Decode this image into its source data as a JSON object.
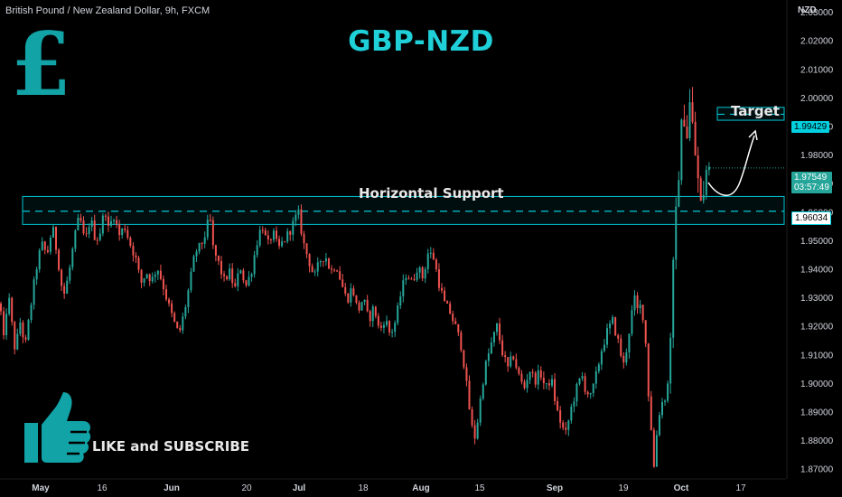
{
  "header": {
    "symbol_description": "British Pound / New Zealand Dollar, 9h, FXCM",
    "currency": "NZD"
  },
  "title": "GBP-NZD",
  "currency_symbol": "£",
  "annotations": {
    "support_label": "Horizontal Support",
    "target_label": "Target",
    "cta": "LIKE and SUBSCRIBE"
  },
  "price_tags": {
    "target": "1.99429",
    "support": "1.96034",
    "last_price": "1.97549",
    "countdown": "03:57:49"
  },
  "colors": {
    "up": "#26a69a",
    "down": "#ef5350",
    "accent": "#1fd0d8",
    "zone": "#00c8d7",
    "background": "#000000"
  },
  "icons": [
    "pound-sign-icon",
    "thumbs-up-icon"
  ],
  "chart_data": {
    "type": "candlestick",
    "title": "GBP-NZD",
    "y_axis_ticks": [
      "2.03000",
      "2.02000",
      "2.01000",
      "2.00000",
      "1.99000",
      "1.98000",
      "1.97000",
      "1.96000",
      "1.95000",
      "1.94000",
      "1.93000",
      "1.92000",
      "1.91000",
      "1.90000",
      "1.89000",
      "1.88000",
      "1.87000"
    ],
    "x_axis_ticks": [
      "May",
      "16",
      "Jun",
      "20",
      "Jul",
      "18",
      "Aug",
      "15",
      "Sep",
      "19",
      "Oct",
      "17"
    ],
    "ylim": [
      1.863,
      2.036
    ],
    "support_zone": {
      "level": 1.96034,
      "low": 1.9557,
      "high": 1.9655
    },
    "target_zone": {
      "level": 1.99429,
      "low": 1.9922,
      "high": 1.9967
    },
    "last_price": 1.97549,
    "path": [
      [
        0,
        1.928
      ],
      [
        4,
        1.915
      ],
      [
        9,
        1.932
      ],
      [
        13,
        1.921
      ],
      [
        17,
        1.911
      ],
      [
        22,
        1.922
      ],
      [
        28,
        1.913
      ],
      [
        34,
        1.927
      ],
      [
        40,
        1.94
      ],
      [
        46,
        1.949
      ],
      [
        52,
        1.945
      ],
      [
        58,
        1.955
      ],
      [
        64,
        1.944
      ],
      [
        70,
        1.93
      ],
      [
        76,
        1.938
      ],
      [
        82,
        1.95
      ],
      [
        88,
        1.959
      ],
      [
        94,
        1.949
      ],
      [
        100,
        1.958
      ],
      [
        106,
        1.95
      ],
      [
        112,
        1.954
      ],
      [
        116,
        1.962
      ],
      [
        120,
        1.954
      ],
      [
        126,
        1.959
      ],
      [
        132,
        1.952
      ],
      [
        138,
        1.955
      ],
      [
        144,
        1.949
      ],
      [
        150,
        1.944
      ],
      [
        156,
        1.935
      ],
      [
        162,
        1.939
      ],
      [
        168,
        1.936
      ],
      [
        174,
        1.941
      ],
      [
        180,
        1.935
      ],
      [
        186,
        1.928
      ],
      [
        192,
        1.922
      ],
      [
        198,
        1.917
      ],
      [
        204,
        1.925
      ],
      [
        210,
        1.935
      ],
      [
        216,
        1.946
      ],
      [
        222,
        1.948
      ],
      [
        228,
        1.953
      ],
      [
        232,
        1.959
      ],
      [
        236,
        1.947
      ],
      [
        242,
        1.942
      ],
      [
        248,
        1.936
      ],
      [
        254,
        1.939
      ],
      [
        260,
        1.933
      ],
      [
        266,
        1.941
      ],
      [
        272,
        1.934
      ],
      [
        278,
        1.939
      ],
      [
        284,
        1.949
      ],
      [
        290,
        1.956
      ],
      [
        296,
        1.948
      ],
      [
        302,
        1.953
      ],
      [
        308,
        1.947
      ],
      [
        314,
        1.95
      ],
      [
        320,
        1.953
      ],
      [
        326,
        1.957
      ],
      [
        330,
        1.96
      ],
      [
        336,
        1.949
      ],
      [
        342,
        1.943
      ],
      [
        348,
        1.937
      ],
      [
        354,
        1.943
      ],
      [
        360,
        1.945
      ],
      [
        366,
        1.939
      ],
      [
        372,
        1.942
      ],
      [
        378,
        1.935
      ],
      [
        384,
        1.929
      ],
      [
        390,
        1.934
      ],
      [
        396,
        1.925
      ],
      [
        402,
        1.93
      ],
      [
        408,
        1.922
      ],
      [
        414,
        1.927
      ],
      [
        420,
        1.918
      ],
      [
        426,
        1.923
      ],
      [
        432,
        1.917
      ],
      [
        438,
        1.922
      ],
      [
        444,
        1.932
      ],
      [
        450,
        1.939
      ],
      [
        456,
        1.935
      ],
      [
        462,
        1.941
      ],
      [
        468,
        1.937
      ],
      [
        474,
        1.946
      ],
      [
        480,
        1.944
      ],
      [
        486,
        1.935
      ],
      [
        492,
        1.928
      ],
      [
        498,
        1.925
      ],
      [
        504,
        1.92
      ],
      [
        510,
        1.914
      ],
      [
        514,
        1.906
      ],
      [
        518,
        1.895
      ],
      [
        522,
        1.885
      ],
      [
        526,
        1.881
      ],
      [
        530,
        1.89
      ],
      [
        534,
        1.9
      ],
      [
        538,
        1.907
      ],
      [
        544,
        1.914
      ],
      [
        550,
        1.92
      ],
      [
        556,
        1.911
      ],
      [
        562,
        1.905
      ],
      [
        568,
        1.91
      ],
      [
        574,
        1.903
      ],
      [
        580,
        1.898
      ],
      [
        586,
        1.905
      ],
      [
        592,
        1.901
      ],
      [
        598,
        1.904
      ],
      [
        604,
        1.898
      ],
      [
        610,
        1.902
      ],
      [
        616,
        1.891
      ],
      [
        622,
        1.885
      ],
      [
        626,
        1.882
      ],
      [
        632,
        1.891
      ],
      [
        638,
        1.898
      ],
      [
        644,
        1.903
      ],
      [
        648,
        1.898
      ],
      [
        654,
        1.895
      ],
      [
        660,
        1.903
      ],
      [
        666,
        1.912
      ],
      [
        672,
        1.918
      ],
      [
        678,
        1.922
      ],
      [
        684,
        1.915
      ],
      [
        690,
        1.906
      ],
      [
        694,
        1.913
      ],
      [
        698,
        1.922
      ],
      [
        702,
        1.93
      ],
      [
        706,
        1.925
      ],
      [
        710,
        1.928
      ],
      [
        714,
        1.918
      ],
      [
        718,
        1.895
      ],
      [
        722,
        1.88
      ],
      [
        724,
        1.87
      ],
      [
        728,
        1.887
      ],
      [
        732,
        1.893
      ],
      [
        736,
        1.895
      ],
      [
        740,
        1.901
      ],
      [
        743,
        1.925
      ],
      [
        746,
        1.945
      ],
      [
        749,
        1.962
      ],
      [
        752,
        1.979
      ],
      [
        755,
        1.991
      ],
      [
        758,
        1.995
      ],
      [
        761,
        1.986
      ],
      [
        764,
        2.0
      ],
      [
        767,
        1.988
      ],
      [
        770,
        1.979
      ],
      [
        773,
        1.97
      ],
      [
        776,
        1.961
      ],
      [
        779,
        1.968
      ],
      [
        782,
        1.975
      ],
      [
        786,
        1.9755
      ]
    ]
  }
}
